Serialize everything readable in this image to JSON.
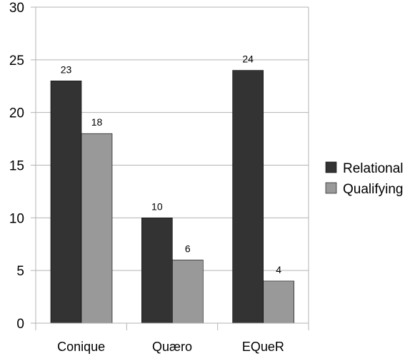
{
  "chart_data": {
    "type": "bar",
    "title": "",
    "xlabel": "",
    "ylabel": "",
    "categories": [
      "Conique",
      "Quæro",
      "EQueR"
    ],
    "series": [
      {
        "name": "Relational",
        "values": [
          23,
          10,
          24
        ],
        "color": "#333333"
      },
      {
        "name": "Qualifying",
        "values": [
          18,
          6,
          4
        ],
        "color": "#999999"
      }
    ],
    "ylim": [
      0,
      30
    ],
    "yticks": [
      0,
      5,
      10,
      15,
      20,
      25,
      30
    ],
    "grid": "horizontal",
    "legend_position": "right"
  }
}
